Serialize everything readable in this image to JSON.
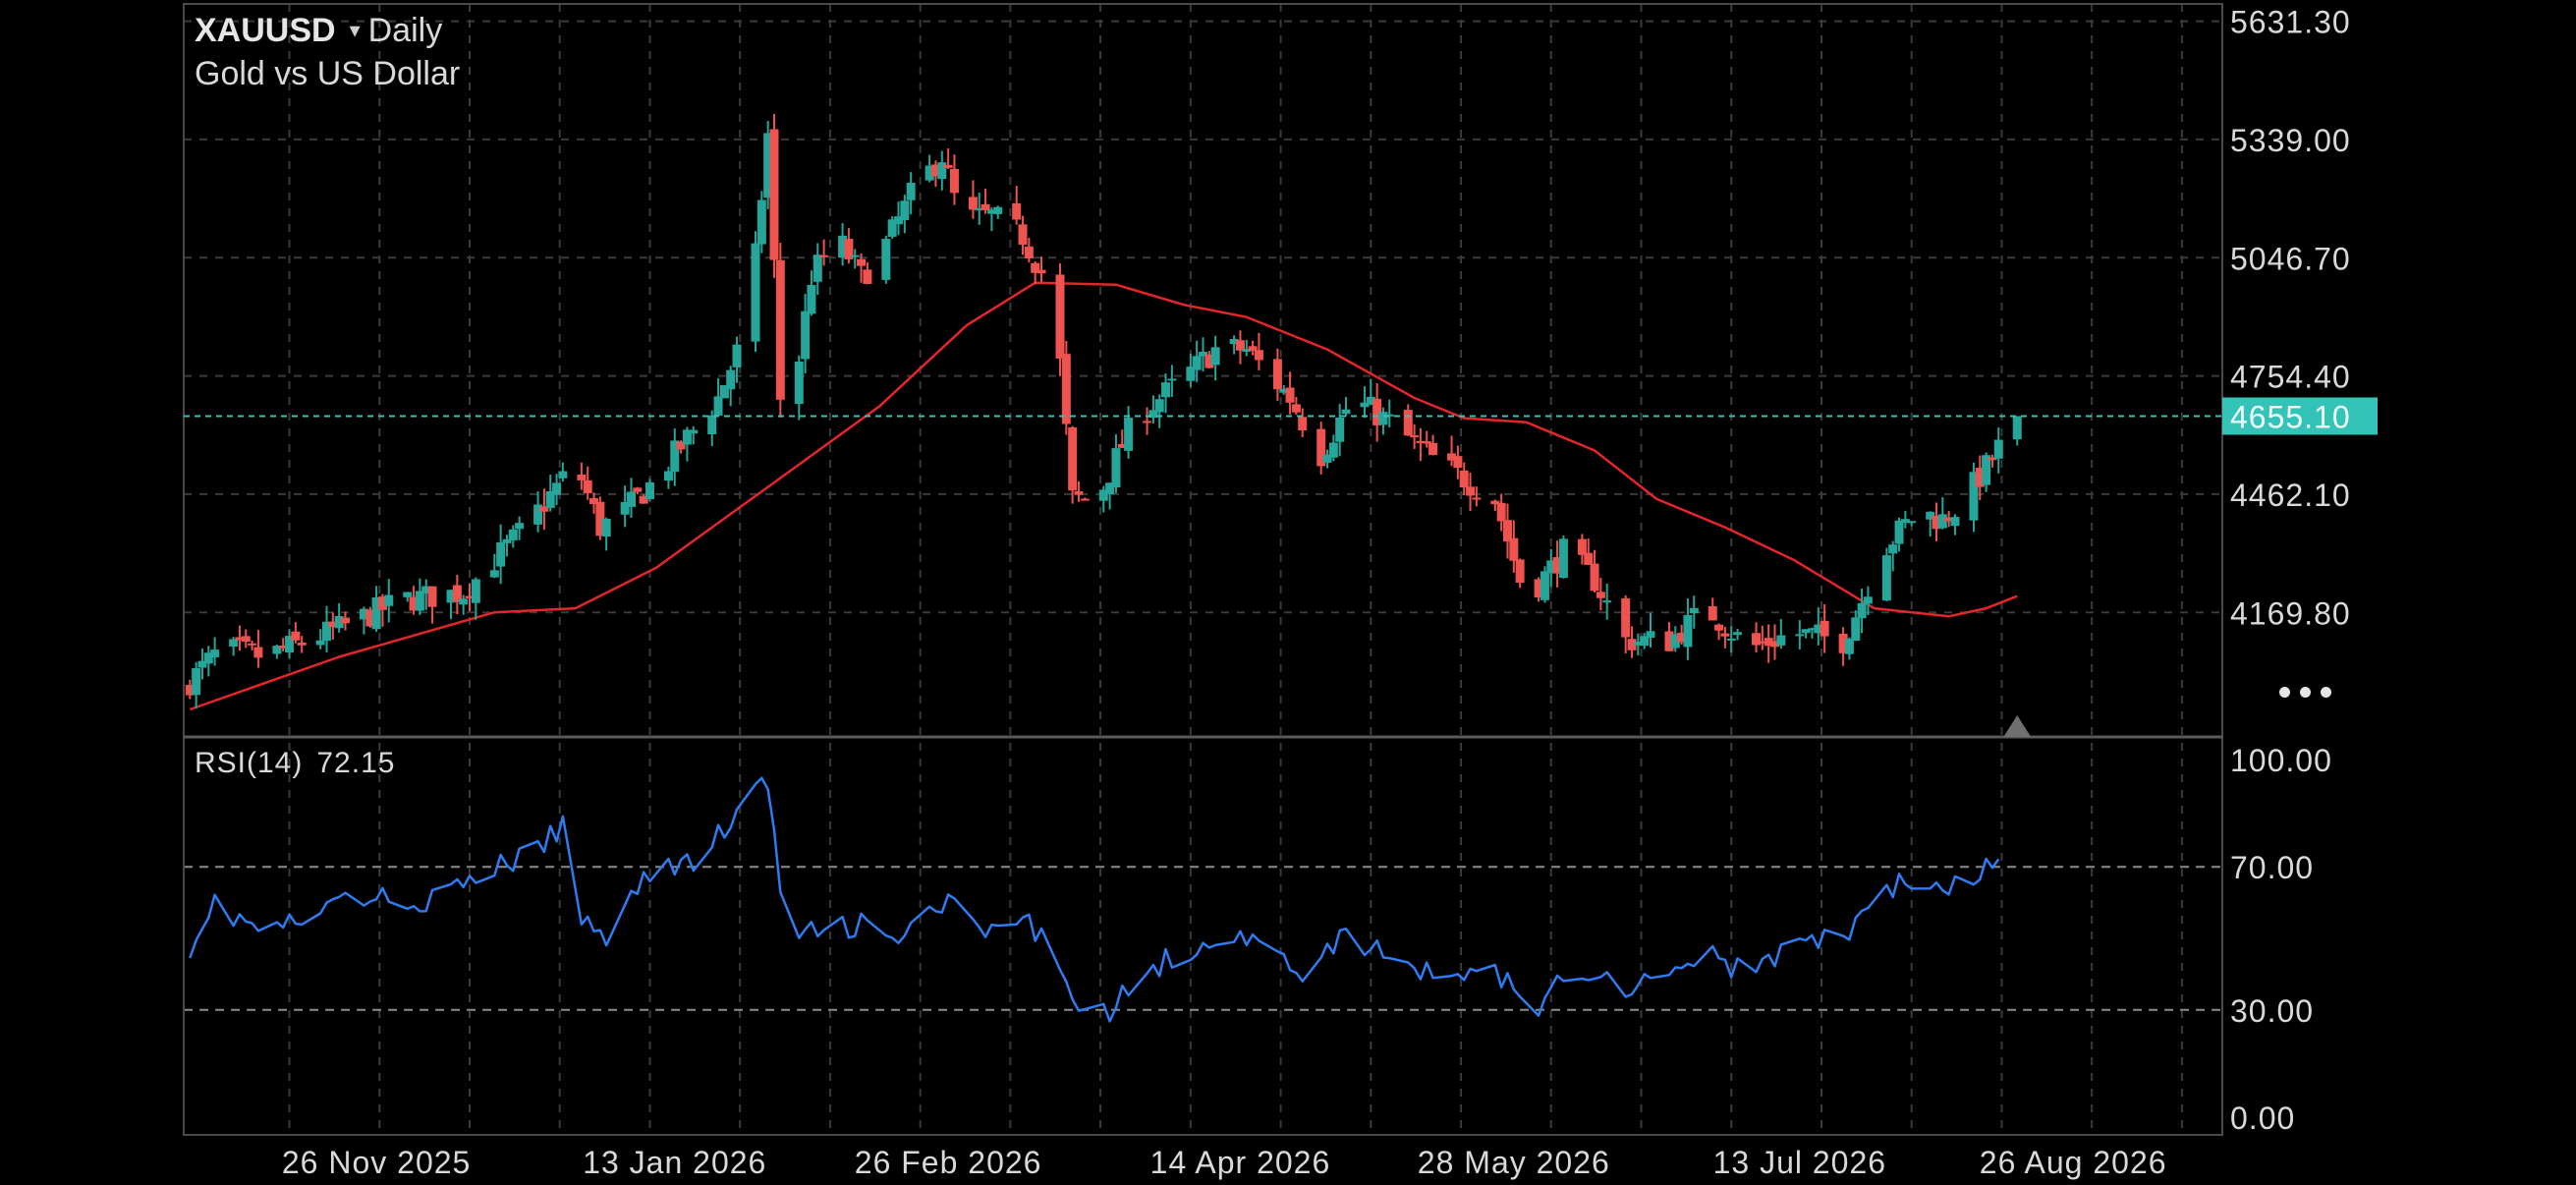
{
  "header": {
    "symbol": "XAUUSD",
    "timeframe_arrow": "▾",
    "timeframe": "Daily",
    "description": "Gold vs US Dollar"
  },
  "indicator": {
    "name": "RSI(14)",
    "value": "72.15"
  },
  "colors": {
    "background": "#000000",
    "bull": "#26a69a",
    "bear": "#ef5350",
    "ma": "#e4262b",
    "rsi": "#2f7bf0",
    "price_line": "#33c3b8",
    "grid": "#3a3a3a",
    "axis_text": "#d9d9d9"
  },
  "icons": {
    "more": "more-dots-icon",
    "marker": "triangle-up-icon"
  },
  "chart_data": [
    {
      "type": "candlestick",
      "title": "XAUUSD",
      "subtitle": "Gold vs US Dollar",
      "timeframe": "Daily",
      "x_range": [
        "2025-10-26",
        "2026-09-19"
      ],
      "y_range": [
        3930,
        5640
      ],
      "y_ticks": [
        "5631.30",
        "5339.00",
        "5046.70",
        "4754.40",
        "4462.10",
        "4169.80"
      ],
      "x_ticks": [
        "26 Nov 2025",
        "13 Jan 2026",
        "26 Feb 2026",
        "14 Apr 2026",
        "28 May 2026",
        "13 Jul 2026",
        "26 Aug 2026"
      ],
      "last_price": "4655.10",
      "grid": true,
      "close_anchors": [
        [
          "2025-10-27",
          4000
        ],
        [
          "2025-11-01",
          4080
        ],
        [
          "2025-11-08",
          4060
        ],
        [
          "2025-11-20",
          4130
        ],
        [
          "2025-11-30",
          4200
        ],
        [
          "2025-12-10",
          4220
        ],
        [
          "2025-12-20",
          4380
        ],
        [
          "2025-12-28",
          4540
        ],
        [
          "2026-01-01",
          4380
        ],
        [
          "2026-01-05",
          4420
        ],
        [
          "2026-01-10",
          4500
        ],
        [
          "2026-01-15",
          4600
        ],
        [
          "2026-01-20",
          4700
        ],
        [
          "2026-01-24",
          4850
        ],
        [
          "2026-01-26",
          5050
        ],
        [
          "2026-01-28",
          5350
        ],
        [
          "2026-01-30",
          4700
        ],
        [
          "2026-02-02",
          4800
        ],
        [
          "2026-02-04",
          5000
        ],
        [
          "2026-02-08",
          5100
        ],
        [
          "2026-02-12",
          5000
        ],
        [
          "2026-02-15",
          5050
        ],
        [
          "2026-02-20",
          5200
        ],
        [
          "2026-02-25",
          5300
        ],
        [
          "2026-02-28",
          5140
        ],
        [
          "2026-03-05",
          5150
        ],
        [
          "2026-03-10",
          5100
        ],
        [
          "2026-03-15",
          4950
        ],
        [
          "2026-03-18",
          4450
        ],
        [
          "2026-03-22",
          4450
        ],
        [
          "2026-03-28",
          4650
        ],
        [
          "2026-04-05",
          4750
        ],
        [
          "2026-04-10",
          4820
        ],
        [
          "2026-04-15",
          4820
        ],
        [
          "2026-04-22",
          4700
        ],
        [
          "2026-04-27",
          4560
        ],
        [
          "2026-05-02",
          4700
        ],
        [
          "2026-05-08",
          4640
        ],
        [
          "2026-05-15",
          4550
        ],
        [
          "2026-05-25",
          4450
        ],
        [
          "2026-05-30",
          4200
        ],
        [
          "2026-06-05",
          4320
        ],
        [
          "2026-06-10",
          4250
        ],
        [
          "2026-06-15",
          4100
        ],
        [
          "2026-06-22",
          4100
        ],
        [
          "2026-06-28",
          4180
        ],
        [
          "2026-07-05",
          4080
        ],
        [
          "2026-07-12",
          4120
        ],
        [
          "2026-07-20",
          4100
        ],
        [
          "2026-07-23",
          4200
        ],
        [
          "2026-07-26",
          4320
        ],
        [
          "2026-08-01",
          4420
        ],
        [
          "2026-08-05",
          4400
        ],
        [
          "2026-08-08",
          4440
        ],
        [
          "2026-08-13",
          4550
        ],
        [
          "2026-08-17",
          4655
        ]
      ],
      "moving_average": [
        [
          "2025-10-27",
          3930
        ],
        [
          "2025-11-20",
          4060
        ],
        [
          "2025-12-15",
          4170
        ],
        [
          "2025-12-28",
          4180
        ],
        [
          "2026-01-10",
          4280
        ],
        [
          "2026-01-28",
          4480
        ],
        [
          "2026-02-15",
          4680
        ],
        [
          "2026-03-01",
          4880
        ],
        [
          "2026-03-12",
          4985
        ],
        [
          "2026-03-25",
          4980
        ],
        [
          "2026-04-05",
          4930
        ],
        [
          "2026-04-15",
          4900
        ],
        [
          "2026-04-28",
          4820
        ],
        [
          "2026-05-12",
          4700
        ],
        [
          "2026-05-20",
          4650
        ],
        [
          "2026-05-30",
          4640
        ],
        [
          "2026-06-10",
          4570
        ],
        [
          "2026-06-20",
          4450
        ],
        [
          "2026-07-01",
          4380
        ],
        [
          "2026-07-12",
          4300
        ],
        [
          "2026-07-25",
          4180
        ],
        [
          "2026-08-06",
          4160
        ],
        [
          "2026-08-12",
          4180
        ],
        [
          "2026-08-17",
          4210
        ]
      ]
    },
    {
      "type": "line",
      "title": "RSI(14)",
      "last_value": 72.15,
      "y_range": [
        0,
        100
      ],
      "y_ticks": [
        "100.00",
        "70.00",
        "30.00",
        "0.00"
      ],
      "levels": [
        70,
        30
      ],
      "anchors": [
        [
          "2025-10-27",
          48
        ],
        [
          "2025-10-31",
          60
        ],
        [
          "2025-11-04",
          55
        ],
        [
          "2025-11-08",
          52
        ],
        [
          "2025-11-15",
          55
        ],
        [
          "2025-11-22",
          62
        ],
        [
          "2025-11-30",
          60
        ],
        [
          "2025-12-08",
          62
        ],
        [
          "2025-12-15",
          70
        ],
        [
          "2025-12-22",
          74
        ],
        [
          "2025-12-27",
          84
        ],
        [
          "2025-12-29",
          55
        ],
        [
          "2026-01-03",
          50
        ],
        [
          "2026-01-06",
          65
        ],
        [
          "2026-01-12",
          70
        ],
        [
          "2026-01-17",
          72
        ],
        [
          "2026-01-23",
          85
        ],
        [
          "2026-01-28",
          94
        ],
        [
          "2026-01-31",
          48
        ],
        [
          "2026-02-05",
          52
        ],
        [
          "2026-02-12",
          54
        ],
        [
          "2026-02-18",
          48
        ],
        [
          "2026-02-22",
          58
        ],
        [
          "2026-03-01",
          60
        ],
        [
          "2026-03-03",
          50
        ],
        [
          "2026-03-10",
          55
        ],
        [
          "2026-03-15",
          46
        ],
        [
          "2026-03-20",
          30
        ],
        [
          "2026-03-24",
          30
        ],
        [
          "2026-03-31",
          42
        ],
        [
          "2026-04-07",
          48
        ],
        [
          "2026-04-12",
          52
        ],
        [
          "2026-04-18",
          47
        ],
        [
          "2026-04-25",
          40
        ],
        [
          "2026-04-30",
          50
        ],
        [
          "2026-05-07",
          46
        ],
        [
          "2026-05-14",
          40
        ],
        [
          "2026-05-22",
          42
        ],
        [
          "2026-05-28",
          38
        ],
        [
          "2026-06-01",
          28
        ],
        [
          "2026-06-06",
          44
        ],
        [
          "2026-06-14",
          36
        ],
        [
          "2026-06-20",
          40
        ],
        [
          "2026-06-28",
          46
        ],
        [
          "2026-07-04",
          40
        ],
        [
          "2026-07-12",
          48
        ],
        [
          "2026-07-20",
          50
        ],
        [
          "2026-07-25",
          62
        ],
        [
          "2026-07-30",
          66
        ],
        [
          "2026-08-05",
          62
        ],
        [
          "2026-08-10",
          67
        ],
        [
          "2026-08-15",
          72.15
        ]
      ]
    }
  ]
}
